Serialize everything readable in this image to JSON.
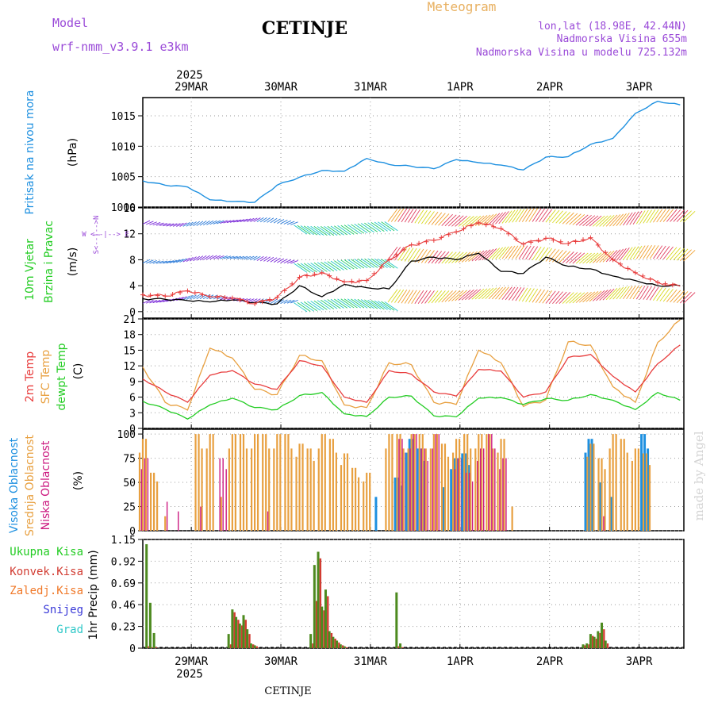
{
  "header": {
    "model_label": "Model",
    "model_name": "wrf-nmm_v3.9.1  e3km",
    "title": "CETINJE",
    "meteogram": "Meteogram",
    "coords": "lon,lat (18.98E, 42.44N)",
    "elevation": "Nadmorska Visina 655m",
    "model_elevation": "Nadmorska Visina u modelu 725.132m"
  },
  "footer": {
    "station": "CETINJE",
    "watermark": "made by Angel"
  },
  "colors": {
    "pressure": "#1e90e0",
    "temp2m": "#e83c3c",
    "sfc": "#e8a040",
    "dewpt": "#22cc22",
    "wind_speed": "#000000",
    "gust": "#e83c3c",
    "high": "#1e90e0",
    "mid": "#e8a040",
    "low": "#cc1a80",
    "total_precip": "#4d8a1f",
    "conv": "#d23c32",
    "frozen": "#f07828",
    "snow": "#3838d8",
    "hail": "#30c8c8",
    "axis_label_magenta": "#9a4ad8"
  },
  "chart_data": [
    {
      "type": "line",
      "id": "pressure",
      "title": "Pritisak na nivou mora",
      "ylabel": "(hPa)",
      "ylim": [
        1000,
        1018
      ],
      "yticks": [
        "1000",
        "1005",
        "1010",
        "1015"
      ],
      "x_hours": [
        0,
        6,
        12,
        18,
        24,
        30,
        36,
        42,
        48,
        54,
        60,
        66,
        72,
        78,
        84,
        90,
        96,
        102,
        108,
        114,
        120,
        126,
        132,
        138,
        144
      ],
      "series": [
        {
          "name": "Pritisak",
          "values": [
            1004.3,
            1003.6,
            1003.3,
            1001.2,
            1000.9,
            1000.8,
            1003.6,
            1004.9,
            1006.0,
            1005.9,
            1008.0,
            1007.0,
            1006.7,
            1006.3,
            1007.8,
            1007.3,
            1006.9,
            1006.1,
            1008.2,
            1008.3,
            1010.3,
            1011.3,
            1015.4,
            1017.4,
            1016.8
          ]
        }
      ]
    },
    {
      "type": "line",
      "id": "wind",
      "title": "10m Vjetar",
      "title2": "Brzina i Pravac",
      "ylabel": "(m/s)",
      "ylim": [
        -1,
        16
      ],
      "yticks": [
        "0",
        "4",
        "8",
        "12",
        "16"
      ],
      "compass": "W <--|--> E",
      "compass_ns": "S<--|-->N",
      "x_hours": [
        0,
        6,
        12,
        18,
        24,
        30,
        36,
        42,
        48,
        54,
        60,
        66,
        72,
        78,
        84,
        90,
        96,
        102,
        108,
        114,
        120,
        126,
        132,
        138,
        144
      ],
      "series": [
        {
          "name": "Brzina",
          "values": [
            2.0,
            1.9,
            1.7,
            1.5,
            1.8,
            1.4,
            1.2,
            4.0,
            2.3,
            4.2,
            3.7,
            3.5,
            7.8,
            8.4,
            8.0,
            9.0,
            6.2,
            5.9,
            8.4,
            7.0,
            6.6,
            5.5,
            4.8,
            4.0,
            4.0
          ]
        },
        {
          "name": "Udar",
          "values": [
            2.6,
            2.4,
            3.2,
            2.3,
            2.1,
            1.2,
            2.2,
            5.3,
            6.0,
            4.6,
            4.8,
            8.0,
            10.3,
            11.0,
            12.3,
            13.7,
            12.8,
            10.4,
            11.3,
            10.5,
            11.4,
            8.0,
            6.0,
            4.5,
            3.9
          ]
        }
      ]
    },
    {
      "type": "line",
      "id": "temperature",
      "title": "2m Temp",
      "title2": "SFC Temp",
      "title3": "dewpt Temp",
      "ylabel": "(C)",
      "ylim": [
        0,
        21
      ],
      "yticks": [
        "0",
        "3",
        "6",
        "9",
        "12",
        "15",
        "18",
        "21"
      ],
      "x_hours": [
        0,
        6,
        12,
        18,
        24,
        30,
        36,
        42,
        48,
        54,
        60,
        66,
        72,
        78,
        84,
        90,
        96,
        102,
        108,
        114,
        120,
        126,
        132,
        138,
        144
      ],
      "series": [
        {
          "name": "2m Temp",
          "values": [
            9.5,
            7.0,
            5.0,
            10.2,
            11.1,
            8.5,
            7.5,
            13.0,
            12.0,
            6.0,
            5.0,
            11.1,
            10.4,
            7.0,
            6.2,
            11.3,
            11.0,
            6.0,
            7.0,
            13.6,
            14.2,
            10.0,
            7.0,
            12.4,
            16.0
          ]
        },
        {
          "name": "SFC Temp",
          "values": [
            11.8,
            5.0,
            3.5,
            15.4,
            13.5,
            7.5,
            6.5,
            14.0,
            13.0,
            4.5,
            4.0,
            12.6,
            12.2,
            5.0,
            4.6,
            15.0,
            12.6,
            4.2,
            5.5,
            16.6,
            16.0,
            8.0,
            5.0,
            16.5,
            20.8
          ]
        },
        {
          "name": "dewpt Temp",
          "values": [
            5.2,
            3.7,
            1.8,
            4.5,
            5.8,
            4.0,
            3.6,
            6.3,
            6.9,
            2.8,
            2.3,
            6.0,
            6.2,
            2.4,
            2.2,
            5.8,
            5.9,
            4.6,
            5.7,
            5.4,
            6.5,
            5.4,
            3.6,
            6.9,
            5.4
          ]
        }
      ]
    },
    {
      "type": "bar",
      "id": "clouds",
      "title": "Visoka Oblacnost",
      "title2": "Srednja Oblacnost",
      "title3": "Niska  Oblacnost",
      "ylabel": "(%)",
      "ylim": [
        0,
        105
      ],
      "yticks": [
        "0",
        "25",
        "50",
        "75",
        "100"
      ],
      "x_hours": [
        0,
        3,
        6,
        9,
        12,
        15,
        18,
        21,
        24,
        27,
        30,
        33,
        36,
        39,
        42,
        45,
        48,
        51,
        54,
        57,
        60,
        63,
        66,
        69,
        72,
        75,
        78,
        81,
        84,
        87,
        90,
        93,
        96,
        99,
        102,
        105,
        108,
        111,
        114,
        117,
        120,
        123,
        126,
        129,
        132,
        135,
        138,
        141
      ],
      "series": [
        {
          "name": "Visoka",
          "values": [
            0,
            0,
            0,
            0,
            0,
            0,
            0,
            0,
            0,
            0,
            0,
            0,
            0,
            0,
            0,
            0,
            0,
            0,
            0,
            0,
            0,
            35,
            0,
            55,
            95,
            85,
            0,
            45,
            75,
            80,
            0,
            0,
            0,
            0,
            0,
            0,
            0,
            0,
            0,
            0,
            95,
            50,
            35,
            0,
            0,
            100,
            0,
            0
          ]
        },
        {
          "name": "Srednja",
          "values": [
            95,
            60,
            15,
            0,
            0,
            100,
            100,
            35,
            100,
            100,
            100,
            100,
            100,
            100,
            90,
            85,
            100,
            95,
            80,
            65,
            60,
            0,
            100,
            100,
            100,
            100,
            100,
            90,
            95,
            100,
            100,
            100,
            95,
            25,
            0,
            0,
            0,
            0,
            0,
            0,
            90,
            75,
            100,
            95,
            85,
            80,
            0,
            0
          ]
        },
        {
          "name": "Niska",
          "values": [
            75,
            0,
            30,
            20,
            0,
            25,
            0,
            75,
            0,
            0,
            0,
            20,
            0,
            0,
            0,
            0,
            0,
            0,
            0,
            0,
            0,
            0,
            0,
            95,
            100,
            85,
            100,
            0,
            75,
            60,
            85,
            100,
            75,
            0,
            0,
            0,
            0,
            0,
            0,
            0,
            0,
            15,
            0,
            0,
            0,
            0,
            0,
            0
          ]
        }
      ]
    },
    {
      "type": "bar",
      "id": "precip",
      "title": "Ukupna  Kisa",
      "title2": "Konvek.Kisa",
      "title3": "Zaledj.Kisa",
      "title4": "Snijeg",
      "title5": "Grad",
      "ylabel": "1hr Precip (mm)",
      "ylim": [
        0,
        1.15
      ],
      "yticks": [
        "0",
        "0.23",
        "0.46",
        "0.69",
        "0.92",
        "1.15"
      ],
      "x_hours": [
        1,
        2,
        3,
        23,
        24,
        25,
        26,
        27,
        28,
        29,
        30,
        45,
        46,
        47,
        48,
        49,
        50,
        51,
        52,
        53,
        54,
        68,
        69,
        118,
        119,
        120,
        121,
        122,
        123,
        124
      ],
      "series": [
        {
          "name": "Ukupna",
          "values": [
            1.1,
            0.48,
            0.16,
            0.15,
            0.41,
            0.33,
            0.26,
            0.35,
            0.2,
            0.05,
            0.03,
            0.15,
            0.88,
            1.02,
            0.44,
            0.62,
            0.18,
            0.12,
            0.08,
            0.04,
            0.02,
            0.59,
            0.05,
            0.04,
            0.05,
            0.15,
            0.12,
            0.18,
            0.27,
            0.08
          ]
        },
        {
          "name": "Konvek",
          "values": [
            0.02,
            0.01,
            0.01,
            0.04,
            0.38,
            0.3,
            0.24,
            0.3,
            0.15,
            0.04,
            0.02,
            0.05,
            0.5,
            0.95,
            0.4,
            0.55,
            0.16,
            0.1,
            0.06,
            0.03,
            0.01,
            0.02,
            0.01,
            0.03,
            0.04,
            0.13,
            0.1,
            0.16,
            0.2,
            0.05
          ]
        }
      ]
    },
    {
      "type": "axis",
      "id": "time",
      "year": "2025",
      "date_labels": [
        "29MAR",
        "30MAR",
        "31MAR",
        "1APR",
        "2APR",
        "3APR"
      ],
      "date_hours": [
        13,
        37,
        61,
        85,
        109,
        133
      ],
      "range_hours": [
        0,
        145
      ]
    }
  ]
}
